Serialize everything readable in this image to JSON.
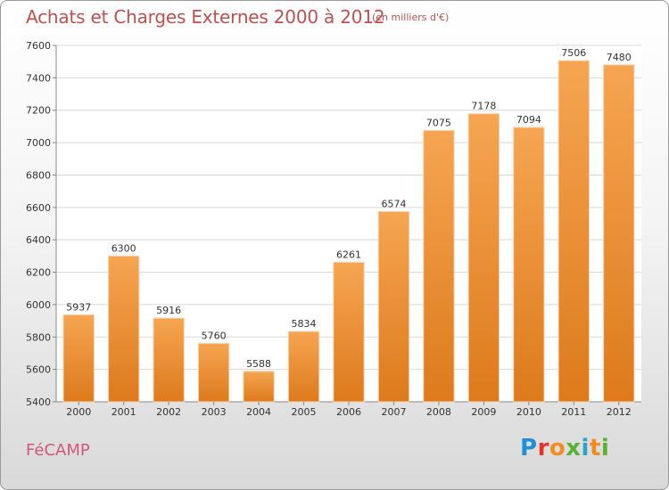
{
  "header": {
    "title": "Achats et Charges Externes 2000 à 2012",
    "subtitle": "(en milliers d'€)"
  },
  "footer": {
    "place": "FéCAMP",
    "logo_text": "Proxiti"
  },
  "colors": {
    "bar_top": "#f6a552",
    "bar_bottom": "#dd7a1c",
    "title": "#c0504d",
    "place": "#d2587a"
  },
  "chart_data": {
    "type": "bar",
    "categories": [
      "2000",
      "2001",
      "2002",
      "2003",
      "2004",
      "2005",
      "2006",
      "2007",
      "2008",
      "2009",
      "2010",
      "2011",
      "2012"
    ],
    "values": [
      5937,
      6300,
      5916,
      5760,
      5588,
      5834,
      6261,
      6574,
      7075,
      7178,
      7094,
      7506,
      7480
    ],
    "ylim": [
      5400,
      7600
    ],
    "yticks": [
      5400,
      5600,
      5800,
      6000,
      6200,
      6400,
      6600,
      6800,
      7000,
      7200,
      7400,
      7600
    ],
    "grid": true,
    "data_labels": true
  }
}
